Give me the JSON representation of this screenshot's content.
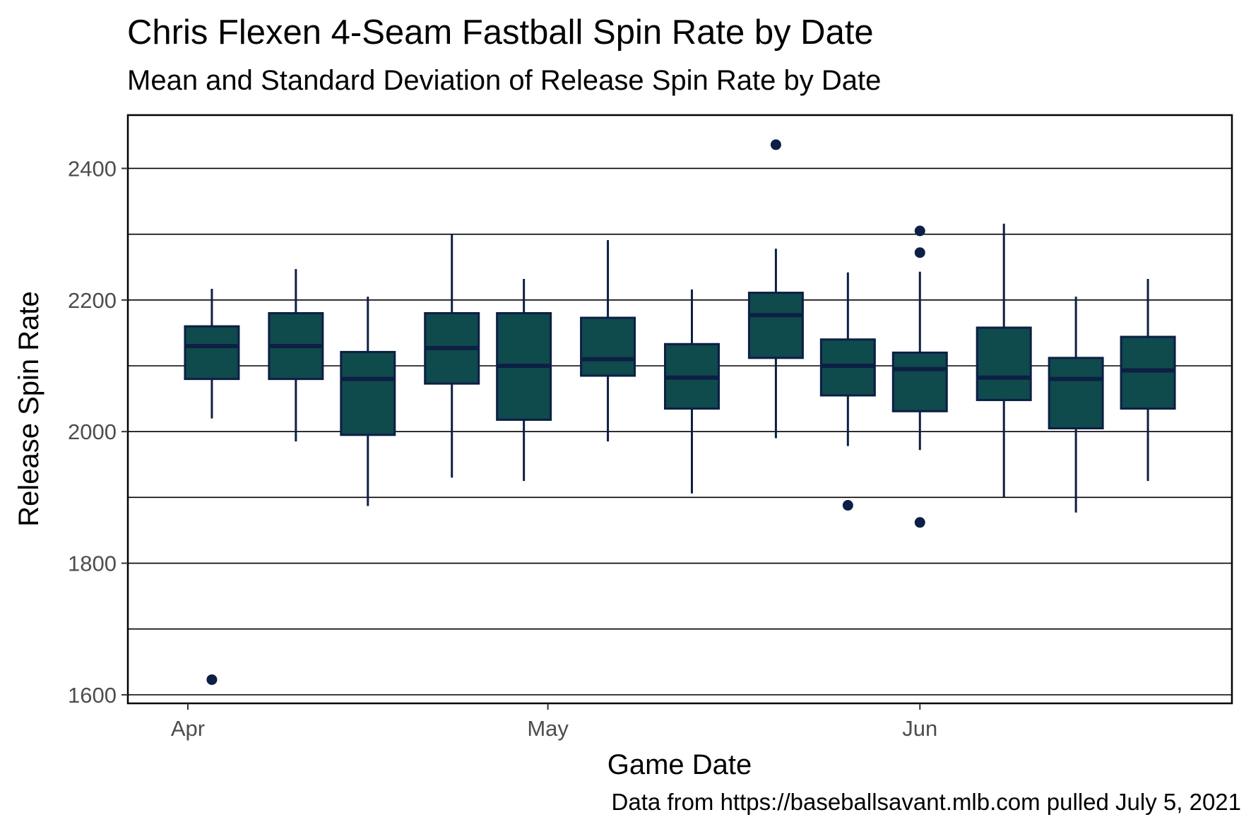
{
  "chart_data": {
    "type": "box",
    "title": "Chris Flexen 4-Seam Fastball Spin Rate by Date",
    "subtitle": "Mean and Standard Deviation of Release Spin Rate by Date",
    "xlabel": "Game Date",
    "ylabel": "Release Spin Rate",
    "caption": "Data from https://baseballsavant.mlb.com pulled July 5, 2021",
    "x_ticks": [
      {
        "date": "2021-04-01",
        "label": "Apr"
      },
      {
        "date": "2021-05-01",
        "label": "May"
      },
      {
        "date": "2021-06-01",
        "label": "Jun"
      }
    ],
    "xlim": [
      "2021-03-27",
      "2021-06-27"
    ],
    "ylim": [
      1587,
      2481
    ],
    "y_ticks": [
      1600,
      1800,
      2000,
      2200,
      2400
    ],
    "y_gridlines": [
      1600,
      1700,
      1800,
      1900,
      2000,
      2100,
      2200,
      2300,
      2400
    ],
    "fill_color": "#0f4a4d",
    "line_color": "#0d1f45",
    "boxes": [
      {
        "date": "2021-04-03",
        "lower_whisker": 2020,
        "q1": 2080,
        "median": 2130,
        "q3": 2160,
        "upper_whisker": 2217,
        "outliers": [
          1623
        ]
      },
      {
        "date": "2021-04-10",
        "lower_whisker": 1985,
        "q1": 2080,
        "median": 2130,
        "q3": 2180,
        "upper_whisker": 2247,
        "outliers": []
      },
      {
        "date": "2021-04-16",
        "lower_whisker": 1887,
        "q1": 1995,
        "median": 2080,
        "q3": 2121,
        "upper_whisker": 2205,
        "outliers": []
      },
      {
        "date": "2021-04-23",
        "lower_whisker": 1930,
        "q1": 2073,
        "median": 2127,
        "q3": 2180,
        "upper_whisker": 2300,
        "outliers": []
      },
      {
        "date": "2021-04-29",
        "lower_whisker": 1925,
        "q1": 2018,
        "median": 2100,
        "q3": 2180,
        "upper_whisker": 2232,
        "outliers": []
      },
      {
        "date": "2021-05-06",
        "lower_whisker": 1985,
        "q1": 2085,
        "median": 2110,
        "q3": 2173,
        "upper_whisker": 2291,
        "outliers": []
      },
      {
        "date": "2021-05-13",
        "lower_whisker": 1906,
        "q1": 2035,
        "median": 2082,
        "q3": 2133,
        "upper_whisker": 2216,
        "outliers": []
      },
      {
        "date": "2021-05-20",
        "lower_whisker": 1990,
        "q1": 2112,
        "median": 2177,
        "q3": 2211,
        "upper_whisker": 2278,
        "outliers": [
          2436
        ]
      },
      {
        "date": "2021-05-26",
        "lower_whisker": 1978,
        "q1": 2055,
        "median": 2100,
        "q3": 2140,
        "upper_whisker": 2242,
        "outliers": [
          1888
        ]
      },
      {
        "date": "2021-06-01",
        "lower_whisker": 1972,
        "q1": 2031,
        "median": 2095,
        "q3": 2120,
        "upper_whisker": 2243,
        "outliers": [
          2305,
          2272,
          1862
        ]
      },
      {
        "date": "2021-06-08",
        "lower_whisker": 1900,
        "q1": 2048,
        "median": 2082,
        "q3": 2158,
        "upper_whisker": 2316,
        "outliers": []
      },
      {
        "date": "2021-06-14",
        "lower_whisker": 1877,
        "q1": 2005,
        "median": 2080,
        "q3": 2112,
        "upper_whisker": 2205,
        "outliers": []
      },
      {
        "date": "2021-06-20",
        "lower_whisker": 1925,
        "q1": 2035,
        "median": 2093,
        "q3": 2144,
        "upper_whisker": 2232,
        "outliers": []
      }
    ]
  }
}
